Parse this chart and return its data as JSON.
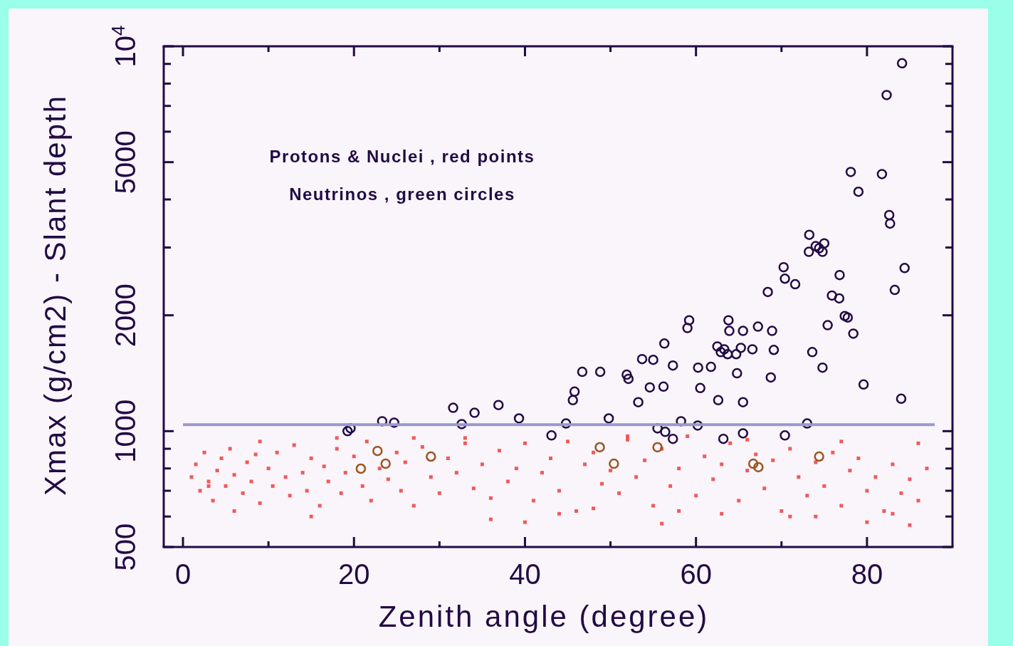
{
  "chart_data": {
    "type": "scatter",
    "xlabel": "Zenith angle (degree)",
    "ylabel": "Xmax (g/cm2) - Slant depth",
    "log": "y",
    "xlim": [
      -2.25,
      90
    ],
    "ylim": [
      500,
      10000
    ],
    "xticks": [
      0,
      {
        "value": 10,
        "label": null
      },
      20,
      {
        "value": 30,
        "label": null
      },
      40,
      {
        "value": 50,
        "label": null
      },
      60,
      {
        "value": 70,
        "label": null
      },
      80
    ],
    "yticks": [
      500,
      {
        "value": 600,
        "label": null
      },
      {
        "value": 700,
        "label": null
      },
      {
        "value": 800,
        "label": null
      },
      {
        "value": 900,
        "label": null
      },
      1000,
      2000,
      {
        "value": 3000,
        "label": null
      },
      {
        "value": 4000,
        "label": null
      },
      5000,
      {
        "value": 6000,
        "label": null
      },
      {
        "value": 7000,
        "label": null
      },
      {
        "value": 8000,
        "label": null
      },
      {
        "value": 9000,
        "label": null
      },
      {
        "value": 10000,
        "label": "10$^{4}$"
      }
    ],
    "grid": false,
    "annotations": [
      "Protons & Nuclei , red points",
      "Neutrinos , green circles"
    ],
    "ref_lines": [
      {
        "axis": "y",
        "value": 1040,
        "color": "#9999cc"
      }
    ],
    "series": [
      {
        "color": "#ee3333",
        "marker": "square",
        "x": [
          1,
          1.5,
          2,
          2.5,
          3,
          3.5,
          4,
          4.5,
          5,
          5.5,
          6,
          7,
          7.5,
          8,
          8.5,
          9,
          10,
          10.5,
          11,
          12,
          12.5,
          13,
          14,
          14.5,
          15,
          16,
          16.5,
          17,
          18,
          18.5,
          19,
          20,
          21,
          21.5,
          22,
          23,
          24,
          25,
          25.5,
          26,
          27,
          28,
          29,
          30,
          31,
          32,
          33,
          34,
          35,
          36,
          37,
          38,
          39,
          40,
          41,
          42,
          43,
          44,
          45,
          46,
          47,
          48,
          49,
          50,
          51,
          52,
          53,
          54,
          55,
          56,
          57,
          58,
          59,
          60,
          61,
          62,
          63,
          64,
          65,
          66,
          67,
          68,
          69,
          70,
          71,
          72,
          73,
          74,
          75,
          76,
          77,
          78,
          79,
          80,
          81,
          82,
          83,
          84,
          85,
          86,
          87,
          3,
          9,
          15,
          27,
          33,
          44,
          52,
          58,
          66,
          71,
          77,
          83,
          86,
          6,
          18,
          36,
          48,
          63,
          74,
          80,
          85,
          40,
          56
        ],
        "values": [
          760,
          820,
          700,
          880,
          740,
          660,
          790,
          850,
          720,
          900,
          770,
          690,
          830,
          740,
          870,
          650,
          800,
          720,
          880,
          760,
          680,
          920,
          780,
          700,
          850,
          640,
          810,
          740,
          900,
          690,
          780,
          860,
          720,
          940,
          660,
          800,
          750,
          880,
          700,
          830,
          640,
          910,
          760,
          690,
          850,
          780,
          960,
          710,
          820,
          670,
          890,
          740,
          800,
          930,
          660,
          780,
          850,
          700,
          940,
          620,
          820,
          880,
          730,
          790,
          690,
          950,
          760,
          840,
          640,
          900,
          720,
          800,
          970,
          680,
          860,
          750,
          820,
          930,
          660,
          790,
          870,
          710,
          840,
          620,
          900,
          760,
          680,
          830,
          720,
          880,
          640,
          790,
          850,
          700,
          760,
          620,
          820,
          690,
          750,
          660,
          800,
          720,
          940,
          600,
          960,
          930,
          610,
          970,
          620,
          950,
          600,
          940,
          610,
          930,
          620,
          960,
          590,
          630,
          610,
          600,
          580,
          570,
          580,
          575
        ]
      },
      {
        "color": "#220a44",
        "marker": "circle",
        "x": [
          19.25,
          19.6,
          23.3,
          24.7,
          31.6,
          34.1,
          36.9,
          39.3,
          32.6,
          43.1,
          44.8,
          45.8,
          45.6,
          46.7,
          48.8,
          49.8,
          51.9,
          52.1,
          53.25,
          53.7,
          55,
          54.6,
          56.2,
          56.3,
          57.3,
          59,
          59.2,
          55.5,
          56.4,
          57.3,
          58.25,
          60.2,
          60.25,
          61.75,
          60.5,
          62.6,
          63.2,
          63.8,
          63.9,
          62.5,
          62.9,
          63.3,
          63.7,
          64.7,
          65.5,
          65.25,
          66.6,
          67.25,
          68.9,
          69.1,
          68.75,
          64.8,
          65.5,
          65.5,
          68.4,
          70.25,
          70.4,
          71.6,
          73.6,
          74.8,
          73.25,
          73.2,
          74,
          74.8,
          75,
          74.4,
          75.4,
          75.9,
          76.75,
          76.8,
          77.4,
          77.75,
          78.4,
          78.1,
          79,
          81.75,
          82.3,
          82.6,
          82.7,
          84.1,
          83.25,
          84.4,
          84,
          79.6,
          70.4,
          73
        ],
        "values": [
          1000,
          1017,
          1061,
          1052,
          1150,
          1116,
          1169,
          1079,
          1043,
          975,
          1047,
          1267,
          1204,
          1426,
          1426,
          1079,
          1402,
          1367,
          1189,
          1539,
          1532,
          1299,
          1305,
          1689,
          1481,
          1853,
          1941,
          1017,
          996,
          955,
          1061,
          1034,
          1462,
          1469,
          1294,
          1204,
          955,
          1941,
          1822,
          1660,
          1605,
          1632,
          1585,
          1585,
          1822,
          1646,
          1632,
          1869,
          1822,
          1626,
          1379,
          1414,
          1189,
          987,
          2299,
          2666,
          2490,
          2409,
          1605,
          1462,
          3237,
          2924,
          3025,
          2924,
          3076,
          2987,
          1885,
          2251,
          2213,
          2544,
          1991,
          1974,
          1792,
          4714,
          4188,
          4655,
          7472,
          3643,
          3462,
          9036,
          2328,
          2654,
          1214,
          1322,
          975,
          1047
        ]
      },
      {
        "color": "#995522",
        "marker": "circle",
        "x": [
          20.8,
          22.75,
          23.7,
          29,
          48.75,
          50.4,
          55.5,
          66.7,
          74.4,
          67.3
        ],
        "values": [
          799,
          888,
          823,
          859,
          908,
          823,
          908,
          823,
          859,
          806
        ]
      }
    ]
  }
}
